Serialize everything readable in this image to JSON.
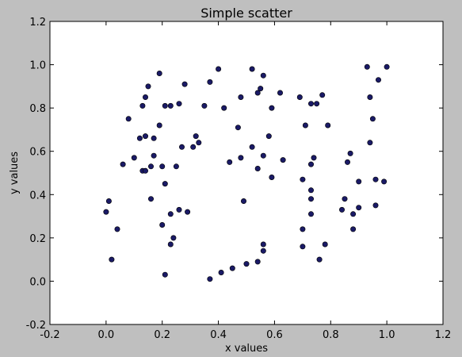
{
  "chart_data": {
    "type": "scatter",
    "title": "Simple scatter",
    "xlabel": "x values",
    "ylabel": "y values",
    "xlim": [
      -0.2,
      1.2
    ],
    "ylim": [
      -0.2,
      1.2
    ],
    "xticks": [
      -0.2,
      0.0,
      0.2,
      0.4,
      0.6,
      0.8,
      1.0,
      1.2
    ],
    "yticks": [
      -0.2,
      0.0,
      0.2,
      0.4,
      0.6,
      0.8,
      1.0,
      1.2
    ],
    "grid": false,
    "marker_color": "#1a1a66",
    "background_color": "#bfbfbf",
    "plot_background_color": "#ffffff",
    "points": [
      [
        0.0,
        0.32
      ],
      [
        0.01,
        0.37
      ],
      [
        0.02,
        0.1
      ],
      [
        0.04,
        0.24
      ],
      [
        0.06,
        0.54
      ],
      [
        0.08,
        0.75
      ],
      [
        0.1,
        0.57
      ],
      [
        0.12,
        0.66
      ],
      [
        0.13,
        0.51
      ],
      [
        0.13,
        0.81
      ],
      [
        0.14,
        0.67
      ],
      [
        0.14,
        0.85
      ],
      [
        0.14,
        0.51
      ],
      [
        0.15,
        0.9
      ],
      [
        0.16,
        0.53
      ],
      [
        0.16,
        0.38
      ],
      [
        0.17,
        0.58
      ],
      [
        0.17,
        0.66
      ],
      [
        0.19,
        0.96
      ],
      [
        0.19,
        0.72
      ],
      [
        0.2,
        0.53
      ],
      [
        0.2,
        0.26
      ],
      [
        0.21,
        0.45
      ],
      [
        0.21,
        0.81
      ],
      [
        0.21,
        0.03
      ],
      [
        0.23,
        0.81
      ],
      [
        0.23,
        0.31
      ],
      [
        0.23,
        0.17
      ],
      [
        0.24,
        0.2
      ],
      [
        0.25,
        0.53
      ],
      [
        0.26,
        0.82
      ],
      [
        0.26,
        0.33
      ],
      [
        0.27,
        0.62
      ],
      [
        0.28,
        0.91
      ],
      [
        0.29,
        0.32
      ],
      [
        0.31,
        0.62
      ],
      [
        0.32,
        0.67
      ],
      [
        0.33,
        0.64
      ],
      [
        0.35,
        0.81
      ],
      [
        0.37,
        0.92
      ],
      [
        0.37,
        0.01
      ],
      [
        0.4,
        0.98
      ],
      [
        0.41,
        0.04
      ],
      [
        0.42,
        0.8
      ],
      [
        0.44,
        0.55
      ],
      [
        0.45,
        0.06
      ],
      [
        0.47,
        0.71
      ],
      [
        0.48,
        0.85
      ],
      [
        0.48,
        0.57
      ],
      [
        0.49,
        0.37
      ],
      [
        0.5,
        0.08
      ],
      [
        0.52,
        0.98
      ],
      [
        0.52,
        0.62
      ],
      [
        0.54,
        0.87
      ],
      [
        0.54,
        0.52
      ],
      [
        0.54,
        0.09
      ],
      [
        0.55,
        0.89
      ],
      [
        0.56,
        0.58
      ],
      [
        0.56,
        0.95
      ],
      [
        0.56,
        0.17
      ],
      [
        0.56,
        0.14
      ],
      [
        0.58,
        0.67
      ],
      [
        0.59,
        0.8
      ],
      [
        0.59,
        0.48
      ],
      [
        0.62,
        0.87
      ],
      [
        0.63,
        0.56
      ],
      [
        0.69,
        0.85
      ],
      [
        0.7,
        0.24
      ],
      [
        0.7,
        0.47
      ],
      [
        0.7,
        0.16
      ],
      [
        0.71,
        0.72
      ],
      [
        0.73,
        0.38
      ],
      [
        0.73,
        0.82
      ],
      [
        0.73,
        0.54
      ],
      [
        0.73,
        0.42
      ],
      [
        0.73,
        0.31
      ],
      [
        0.74,
        0.57
      ],
      [
        0.75,
        0.82
      ],
      [
        0.76,
        0.1
      ],
      [
        0.77,
        0.86
      ],
      [
        0.78,
        0.17
      ],
      [
        0.79,
        0.72
      ],
      [
        0.84,
        0.33
      ],
      [
        0.85,
        0.38
      ],
      [
        0.86,
        0.55
      ],
      [
        0.87,
        0.59
      ],
      [
        0.88,
        0.24
      ],
      [
        0.88,
        0.31
      ],
      [
        0.9,
        0.34
      ],
      [
        0.9,
        0.46
      ],
      [
        0.93,
        0.99
      ],
      [
        0.94,
        0.64
      ],
      [
        0.94,
        0.85
      ],
      [
        0.95,
        0.75
      ],
      [
        0.96,
        0.47
      ],
      [
        0.96,
        0.35
      ],
      [
        0.97,
        0.93
      ],
      [
        0.99,
        0.46
      ],
      [
        1.0,
        0.99
      ]
    ]
  }
}
